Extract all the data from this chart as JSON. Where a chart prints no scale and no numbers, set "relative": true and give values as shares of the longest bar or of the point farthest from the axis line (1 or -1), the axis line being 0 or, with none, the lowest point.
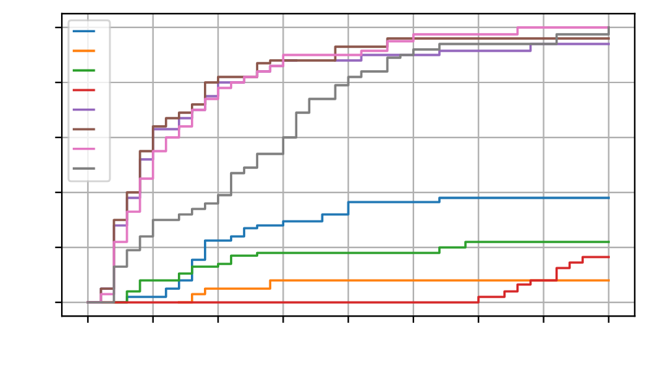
{
  "chart_data": {
    "type": "step",
    "relative": true,
    "grid": true,
    "tick_labels": false,
    "categories": [
      null,
      null,
      null,
      null,
      null,
      null,
      null,
      null,
      null,
      null,
      null,
      null,
      null,
      null,
      null,
      null,
      null,
      null,
      null,
      null,
      null,
      null,
      null,
      null,
      null,
      null,
      null,
      null,
      null,
      null,
      null,
      null,
      null,
      null,
      null,
      null,
      null,
      null,
      null,
      null,
      null
    ],
    "series": [
      {
        "color": "#1f77b4",
        "values": [
          null,
          null,
          0,
          0.02,
          0.02,
          0.02,
          0.05,
          0.08,
          0.155,
          0.225,
          0.225,
          0.24,
          0.27,
          0.28,
          0.28,
          0.295,
          0.295,
          0.295,
          0.32,
          0.32,
          0.365,
          0.365,
          0.365,
          0.365,
          0.365,
          0.365,
          0.365,
          0.38,
          0.38,
          0.38,
          0.38,
          0.38,
          0.38,
          0.38,
          0.38,
          0.38,
          0.38,
          0.38,
          0.38,
          0.38,
          0.38
        ]
      },
      {
        "color": "#ff7f0e",
        "values": [
          null,
          null,
          null,
          null,
          null,
          null,
          null,
          0,
          0.03,
          0.05,
          0.05,
          0.05,
          0.05,
          0.05,
          0.08,
          0.08,
          0.08,
          0.08,
          0.08,
          0.08,
          0.08,
          0.08,
          0.08,
          0.08,
          0.08,
          0.08,
          0.08,
          0.08,
          0.08,
          0.08,
          0.08,
          0.08,
          0.08,
          0.08,
          0.08,
          0.08,
          0.08,
          0.08,
          0.08,
          0.08,
          0.08
        ]
      },
      {
        "color": "#2ca02c",
        "values": [
          null,
          null,
          0,
          0.04,
          0.08,
          0.08,
          0.08,
          0.105,
          0.13,
          0.13,
          0.14,
          0.17,
          0.17,
          0.18,
          0.18,
          0.18,
          0.18,
          0.18,
          0.18,
          0.18,
          0.18,
          0.18,
          0.18,
          0.18,
          0.18,
          0.18,
          0.18,
          0.2,
          0.2,
          0.22,
          0.22,
          0.22,
          0.22,
          0.22,
          0.22,
          0.22,
          0.22,
          0.22,
          0.22,
          0.22,
          0.22
        ]
      },
      {
        "color": "#d62728",
        "values": [
          0,
          0,
          0,
          0,
          0,
          0,
          0,
          0,
          0,
          0,
          0,
          0,
          0,
          0,
          0,
          0,
          0,
          0,
          0,
          0,
          0,
          0,
          0,
          0,
          0,
          0,
          0,
          0,
          0,
          0,
          0.02,
          0.02,
          0.04,
          0.065,
          0.08,
          0.08,
          0.125,
          0.145,
          0.165,
          0.165,
          0.165
        ]
      },
      {
        "color": "#9467bd",
        "values": [
          0,
          0.05,
          0.28,
          0.38,
          0.52,
          0.63,
          0.63,
          0.67,
          0.7,
          0.75,
          0.8,
          0.8,
          0.82,
          0.84,
          0.86,
          0.88,
          null,
          null,
          null,
          0.88,
          0.88,
          0.9,
          0.9,
          0.9,
          0.9,
          0.9,
          0.9,
          0.915,
          0.915,
          0.915,
          0.915,
          0.915,
          0.915,
          0.915,
          0.94,
          0.94,
          0.94,
          0.94,
          0.94,
          0.94,
          0.94
        ]
      },
      {
        "color": "#8c564b",
        "values": [
          0,
          0.05,
          0.3,
          0.4,
          0.55,
          0.64,
          0.67,
          0.69,
          0.72,
          0.8,
          0.82,
          0.82,
          0.82,
          0.87,
          0.88,
          0.88,
          0.88,
          0.88,
          0.88,
          0.93,
          0.93,
          0.93,
          0.93,
          0.96,
          0.96,
          0.96,
          0.96,
          0.96,
          0.96,
          0.96,
          0.96,
          0.96,
          0.96,
          0.96,
          0.96,
          0.96,
          0.96,
          0.96,
          0.96,
          0.96,
          0.96
        ]
      },
      {
        "color": "#e377c2",
        "values": [
          0,
          0.03,
          0.22,
          0.33,
          0.45,
          0.55,
          0.6,
          0.64,
          0.7,
          0.74,
          0.78,
          0.8,
          0.82,
          0.84,
          0.86,
          0.9,
          0.9,
          0.9,
          0.9,
          0.9,
          0.9,
          0.915,
          0.915,
          0.95,
          0.95,
          0.975,
          0.975,
          0.975,
          0.975,
          0.975,
          0.975,
          0.975,
          0.975,
          1.0,
          1.0,
          1.0,
          1.0,
          1.0,
          1.0,
          1.0,
          1.0
        ]
      },
      {
        "color": "#7f7f7f",
        "values": [
          0,
          0,
          0.13,
          0.19,
          0.24,
          0.3,
          0.3,
          0.32,
          0.34,
          0.36,
          0.39,
          0.47,
          0.49,
          0.54,
          0.54,
          0.6,
          0.69,
          0.74,
          0.74,
          0.79,
          0.82,
          0.84,
          0.84,
          0.89,
          0.9,
          0.92,
          0.92,
          0.94,
          0.94,
          0.94,
          0.94,
          0.94,
          0.94,
          0.94,
          0.94,
          0.94,
          0.975,
          0.975,
          0.975,
          0.975,
          1.0
        ]
      }
    ]
  }
}
